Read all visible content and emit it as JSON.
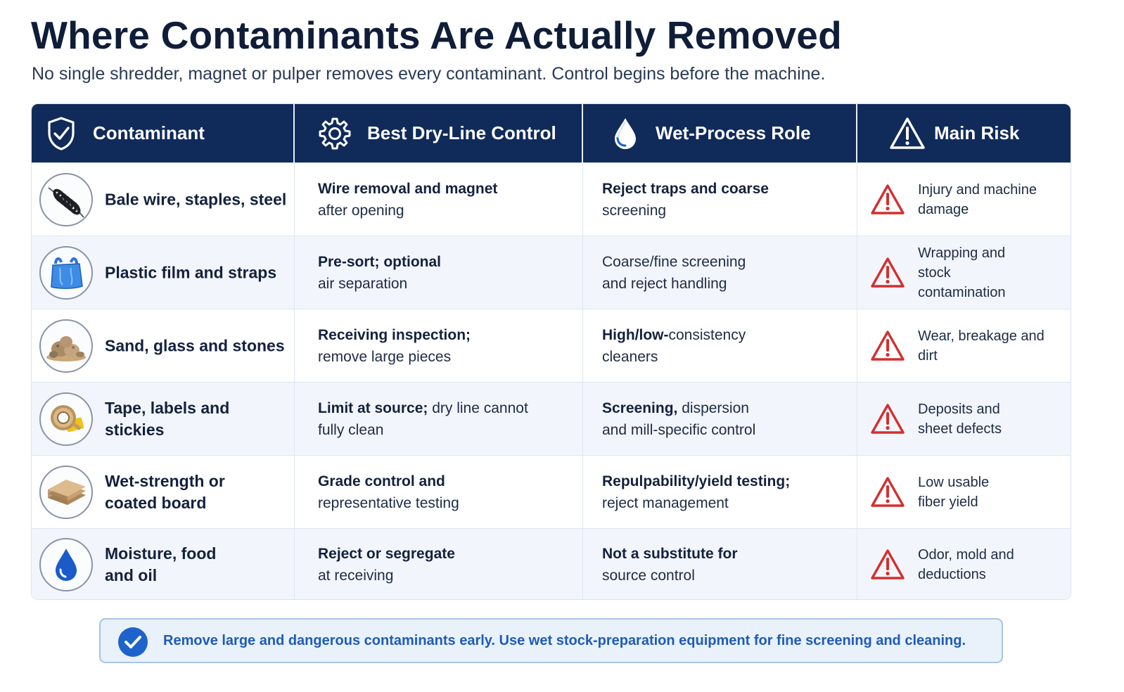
{
  "title": "Where Contaminants Are Actually Removed",
  "subtitle": "No single shredder, magnet or pulper removes every contaminant. Control begins before the machine.",
  "colors": {
    "header_bg": "#102a5a",
    "warning_red": "#d32f2f",
    "footer_text": "#1f5bb8",
    "check_blue": "#1e63c9"
  },
  "headers": [
    {
      "label": "Contaminant",
      "icon": "shield-check-icon"
    },
    {
      "label": "Best Dry-Line Control",
      "icon": "gear-icon"
    },
    {
      "label": "Wet-Process Role",
      "icon": "water-drop-icon"
    },
    {
      "label": "Main Risk",
      "icon": "warning-triangle-icon"
    }
  ],
  "rows": [
    {
      "icon": "wire-coil-icon",
      "contaminant": "Bale wire, staples, steel",
      "dry_bold": "Wire removal and magnet",
      "dry_rest": "after opening",
      "wet_bold": "Reject traps and coarse",
      "wet_rest": "screening",
      "risk": "Injury and machine damage"
    },
    {
      "icon": "plastic-bag-icon",
      "contaminant": "Plastic film and straps",
      "dry_bold": "Pre-sort; optional",
      "dry_rest": "air separation",
      "wet_bold": "",
      "wet_rest": "Coarse/fine screening and reject handling",
      "risk": "Wrapping and stock contamination"
    },
    {
      "icon": "stones-icon",
      "contaminant": "Sand, glass and stones",
      "dry_bold": "Receiving inspection;",
      "dry_rest": "remove large pieces",
      "wet_bold": "High/low-",
      "wet_rest": "consistency cleaners",
      "risk": "Wear, breakage and dirt"
    },
    {
      "icon": "tape-roll-icon",
      "contaminant": "Tape, labels and stickies",
      "dry_bold": "Limit at source;",
      "dry_rest": "dry line cannot fully clean",
      "wet_bold": "Screening,",
      "wet_rest": "dispersion and mill-specific control",
      "risk": "Deposits and sheet defects"
    },
    {
      "icon": "board-stack-icon",
      "contaminant": "Wet-strength or coated board",
      "dry_bold": "Grade control and",
      "dry_rest": "representative testing",
      "wet_bold": "Repulpability/yield testing;",
      "wet_rest": "reject management",
      "risk": "Low usable fiber yield"
    },
    {
      "icon": "moisture-drop-icon",
      "contaminant": "Moisture, food and oil",
      "dry_bold": "Reject or segregate",
      "dry_rest": "at receiving",
      "wet_bold": "Not a substitute for",
      "wet_rest": "source control",
      "risk": "Odor, mold and deductions"
    }
  ],
  "footer": "Remove large and dangerous contaminants early. Use wet stock-preparation equipment for fine screening and cleaning."
}
